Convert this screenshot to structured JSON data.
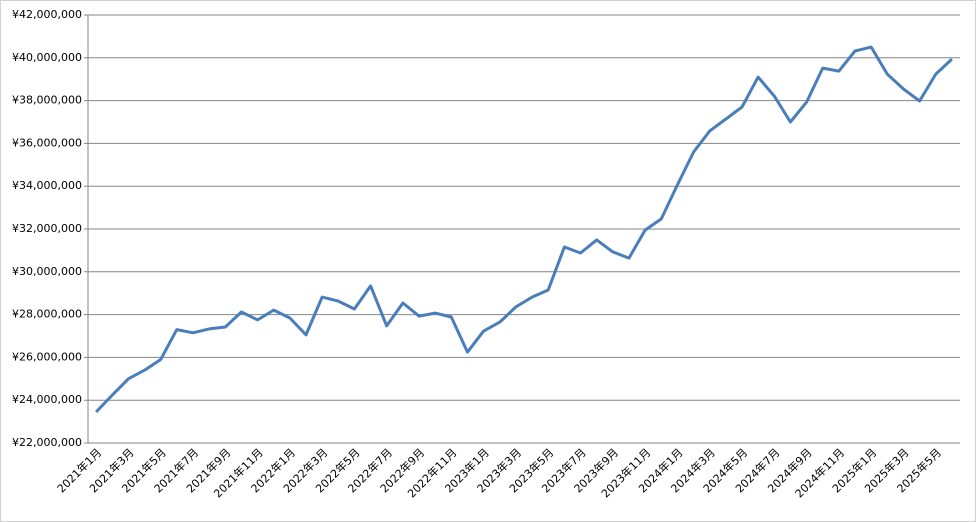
{
  "chart_data": {
    "type": "line",
    "color": "#4a7ebb",
    "grid": true,
    "categories": [
      "2021年1月",
      null,
      "2021年3月",
      null,
      "2021年5月",
      null,
      "2021年7月",
      null,
      "2021年9月",
      null,
      "2021年11月",
      null,
      "2022年1月",
      null,
      "2022年3月",
      null,
      "2022年5月",
      null,
      "2022年7月",
      null,
      "2022年9月",
      null,
      "2022年11月",
      null,
      "2023年1月",
      null,
      "2023年3月",
      null,
      "2023年5月",
      null,
      "2023年7月",
      null,
      "2023年9月",
      null,
      "2023年11月",
      null,
      "2024年1月",
      null,
      "2024年3月",
      null,
      "2024年5月",
      null,
      "2024年7月",
      null,
      "2024年9月",
      null,
      "2024年11月",
      null,
      "2025年1月",
      null,
      "2025年3月",
      null,
      "2025年5月",
      null
    ],
    "values": [
      23450000,
      24240000,
      25000000,
      25400000,
      25900000,
      27300000,
      27150000,
      27330000,
      27420000,
      28120000,
      27750000,
      28210000,
      27840000,
      27050000,
      28820000,
      28630000,
      28260000,
      29340000,
      27470000,
      28540000,
      27930000,
      28070000,
      27890000,
      26250000,
      27230000,
      27650000,
      28360000,
      28820000,
      29150000,
      31160000,
      30880000,
      31490000,
      30930000,
      30640000,
      31950000,
      32470000,
      34060000,
      35600000,
      36580000,
      37140000,
      37700000,
      39100000,
      38210000,
      37000000,
      37930000,
      39520000,
      39380000,
      40320000,
      40500000,
      39240000,
      38540000,
      37980000,
      39240000,
      39940000
    ],
    "ylim": [
      22000000,
      42000000
    ],
    "yticks": [
      {
        "value": 22000000,
        "label": "¥22,000,000"
      },
      {
        "value": 24000000,
        "label": "¥24,000,000"
      },
      {
        "value": 26000000,
        "label": "¥26,000,000"
      },
      {
        "value": 28000000,
        "label": "¥28,000,000"
      },
      {
        "value": 30000000,
        "label": "¥30,000,000"
      },
      {
        "value": 32000000,
        "label": "¥32,000,000"
      },
      {
        "value": 34000000,
        "label": "¥34,000,000"
      },
      {
        "value": 36000000,
        "label": "¥36,000,000"
      },
      {
        "value": 38000000,
        "label": "¥38,000,000"
      },
      {
        "value": 40000000,
        "label": "¥40,000,000"
      },
      {
        "value": 42000000,
        "label": "¥42,000,000"
      }
    ]
  }
}
